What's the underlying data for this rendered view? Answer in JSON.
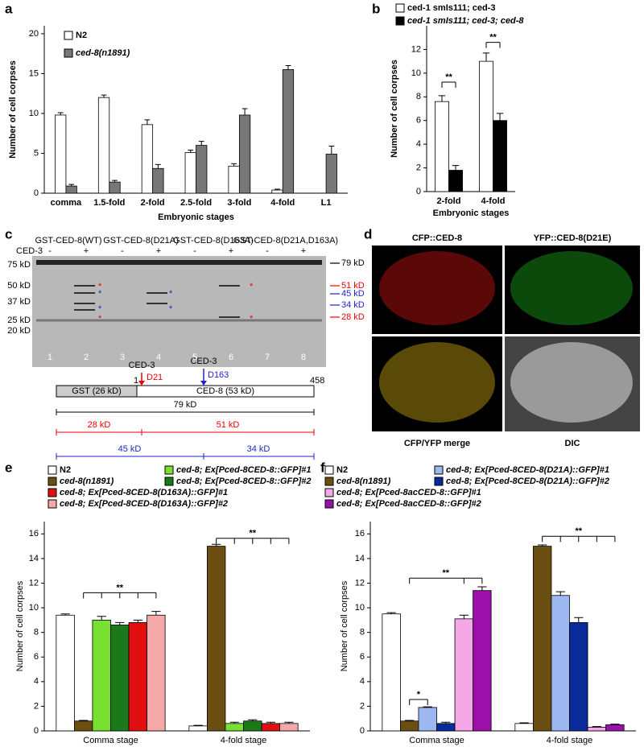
{
  "panel_labels": [
    "a",
    "b",
    "c",
    "d",
    "e",
    "f"
  ],
  "chart_data": [
    {
      "type": "bar",
      "ylabel": "Number of cell corpses",
      "xlabel": "Embryonic stages",
      "categories": [
        "comma",
        "1.5-fold",
        "2-fold",
        "2.5-fold",
        "3-fold",
        "4-fold",
        "L1"
      ],
      "series": [
        {
          "name": "N2",
          "color": "#ffffff",
          "values": [
            9.8,
            12,
            8.6,
            5.1,
            3.4,
            0.4,
            null
          ],
          "errors": [
            0.3,
            0.3,
            0.6,
            0.3,
            0.3,
            0.1,
            null
          ]
        },
        {
          "name": "ced-8(n1891)",
          "color": "#777777",
          "values": [
            0.9,
            1.4,
            3.1,
            6.0,
            9.8,
            15.5,
            4.9
          ],
          "errors": [
            0.2,
            0.2,
            0.5,
            0.5,
            0.8,
            0.5,
            1.0
          ]
        }
      ],
      "ylim": [
        0,
        21
      ],
      "yticks": [
        0,
        5,
        10,
        15,
        20
      ],
      "annotations": []
    },
    {
      "type": "bar",
      "ylabel": "Number of cell corpses",
      "xlabel": "Embryonic stages",
      "categories": [
        "2-fold",
        "4-fold"
      ],
      "series": [
        {
          "name": "ced-1 smIs111; ced-3",
          "color": "#ffffff",
          "values": [
            7.6,
            11
          ],
          "errors": [
            0.5,
            0.7
          ]
        },
        {
          "name": "ced-1 smIs111; ced-3; ced-8",
          "color": "#000000",
          "values": [
            1.8,
            6.0
          ],
          "errors": [
            0.4,
            0.6
          ]
        }
      ],
      "ylim": [
        0,
        14
      ],
      "yticks": [
        0,
        2,
        4,
        6,
        8,
        10,
        12
      ],
      "annotations": [
        "**",
        "**"
      ]
    },
    {
      "type": "bar",
      "ylabel": "Number of cell corpses",
      "categories": [
        "Comma stage",
        "4-fold stage"
      ],
      "series": [
        {
          "name": "N2",
          "color": "#ffffff",
          "values": [
            9.4,
            0.4
          ],
          "errors": [
            0.1,
            0.05
          ]
        },
        {
          "name": "ced-8(n1891)",
          "color": "#6b4f12",
          "values": [
            0.8,
            15.0
          ],
          "errors": [
            0.05,
            0.15
          ]
        },
        {
          "name": "ced-8; Ex[Pced-8CED-8::GFP]#1",
          "color": "#77e030",
          "values": [
            9.0,
            0.6
          ],
          "errors": [
            0.3,
            0.1
          ]
        },
        {
          "name": "ced-8; Ex[Pced-8CED-8::GFP]#2",
          "color": "#1a7a1a",
          "values": [
            8.6,
            0.8
          ],
          "errors": [
            0.2,
            0.1
          ]
        },
        {
          "name": "ced-8; Ex[Pced-8CED-8(D163A)::GFP]#1",
          "color": "#e01010",
          "values": [
            8.8,
            0.6
          ],
          "errors": [
            0.2,
            0.1
          ]
        },
        {
          "name": "ced-8; Ex[Pced-8CED-8(D163A)::GFP]#2",
          "color": "#f4a8a8",
          "values": [
            9.4,
            0.6
          ],
          "errors": [
            0.3,
            0.1
          ]
        }
      ],
      "ylim": [
        0,
        17
      ],
      "yticks": [
        0,
        2,
        4,
        6,
        8,
        10,
        12,
        14,
        16
      ],
      "annotations": [
        "**",
        "**"
      ]
    },
    {
      "type": "bar",
      "ylabel": "Number of cell corpses",
      "categories": [
        "Comma stage",
        "4-fold stage"
      ],
      "series": [
        {
          "name": "N2",
          "color": "#ffffff",
          "values": [
            9.5,
            0.6
          ],
          "errors": [
            0.1,
            0.05
          ]
        },
        {
          "name": "ced-8(n1891)",
          "color": "#6b4f12",
          "values": [
            0.8,
            15.0
          ],
          "errors": [
            0.05,
            0.1
          ]
        },
        {
          "name": "ced-8; Ex[Pced-8CED-8(D21A)::GFP]#1",
          "color": "#9db8f0",
          "values": [
            1.9,
            11.0
          ],
          "errors": [
            0.05,
            0.3
          ]
        },
        {
          "name": "ced-8; Ex[Pced-8CED-8(D21A)::GFP]#2",
          "color": "#0a2a9a",
          "values": [
            0.6,
            8.8
          ],
          "errors": [
            0.1,
            0.4
          ]
        },
        {
          "name": "ced-8; Ex[Pced-8acCED-8::GFP]#1",
          "color": "#f4a8e8",
          "values": [
            9.1,
            0.3
          ],
          "errors": [
            0.3,
            0.05
          ]
        },
        {
          "name": "ced-8; Ex[Pced-8acCED-8::GFP]#2",
          "color": "#9a10a8",
          "values": [
            11.4,
            0.5
          ],
          "errors": [
            0.3,
            0.05
          ]
        }
      ],
      "ylim": [
        0,
        17
      ],
      "yticks": [
        0,
        2,
        4,
        6,
        8,
        10,
        12,
        14,
        16
      ],
      "annotations": [
        "*",
        "**",
        "**"
      ]
    }
  ],
  "gel": {
    "constructs": [
      "GST-CED-8(WT)",
      "GST-CED-8(D21A)",
      "GST-CED-8(D163A)",
      "GST-CED-8(D21A,D163A)"
    ],
    "treatment": "CED-3",
    "lane_signs": [
      "-",
      "+",
      "-",
      "+",
      "-",
      "+",
      "-",
      "+"
    ],
    "markers": [
      "75 kD",
      "50 kD",
      "37 kD",
      "25 kD",
      "20 kD"
    ],
    "products": [
      "79 kD",
      "51 kD",
      "45 kD",
      "34 kD",
      "28 kD"
    ],
    "lanes": [
      "1",
      "2",
      "3",
      "4",
      "5",
      "6",
      "7",
      "8"
    ]
  },
  "diagram": {
    "protease_1": "CED-3",
    "site_1": "D21",
    "protease_2": "CED-3",
    "site_2": "D163",
    "start": "1",
    "end": "458",
    "gst": "GST (26 kD)",
    "ced8": "CED-8 (53 kD)",
    "full": "79 kD",
    "fragment_1a": "28 kD",
    "fragment_1b": "51 kD",
    "fragment_2a": "45 kD",
    "fragment_2b": "34 kD"
  },
  "imaging": {
    "panels": [
      "CFP::CED-8",
      "YFP::CED-8(D21E)",
      "CFP/YFP merge",
      "DIC"
    ]
  }
}
